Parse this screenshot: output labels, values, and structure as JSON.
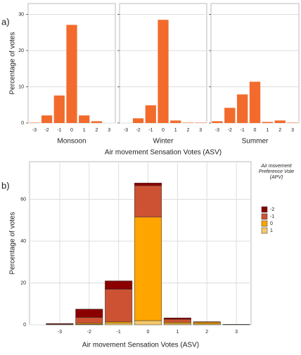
{
  "chart_data": [
    {
      "type": "bar",
      "panel_label": "a)",
      "y_label": "Percentage of votes",
      "x_label": "Air movement Sensation Votes (ASV)",
      "subtitle": "Monsoon",
      "categories": [
        "-3",
        "-2",
        "-1",
        "0",
        "1",
        "2",
        "3"
      ],
      "values": [
        0.1,
        2.1,
        7.6,
        27.1,
        2.1,
        0.5,
        0
      ],
      "color": "#f26b2c",
      "ylim": [
        0,
        33
      ],
      "yticks": [
        0,
        10,
        20,
        30
      ],
      "grid": true
    },
    {
      "type": "bar",
      "subtitle": "Winter",
      "categories": [
        "-3",
        "-2",
        "-1",
        "0",
        "1",
        "2",
        "3"
      ],
      "values": [
        0,
        1.3,
        4.9,
        28.5,
        0.7,
        0.1,
        0.1
      ],
      "color": "#f26b2c",
      "ylim": [
        0,
        33
      ],
      "grid": true
    },
    {
      "type": "bar",
      "subtitle": "Summer",
      "categories": [
        "-3",
        "-2",
        "-1",
        "0",
        "1",
        "2",
        "3"
      ],
      "values": [
        0.5,
        4.2,
        7.9,
        11.4,
        0.3,
        0.7,
        0.1
      ],
      "color": "#f26b2c",
      "ylim": [
        0,
        33
      ],
      "grid": true
    },
    {
      "type": "stacked_bar",
      "panel_label": "b)",
      "y_label": "Percentage of votes",
      "x_label": "Air movement Sensation Votes (ASV)",
      "legend_title": "Air movement Preference Vote (APV)",
      "categories": [
        "-3",
        "-2",
        "-1",
        "0",
        "1",
        "2",
        "3"
      ],
      "series": [
        {
          "name": "-2",
          "color": "#8b0000",
          "values": [
            0.3,
            4,
            4,
            1.3,
            0.7,
            0,
            0
          ]
        },
        {
          "name": "-1",
          "color": "#cd5234",
          "values": [
            0.3,
            2.8,
            15.5,
            15,
            1.4,
            0.3,
            0
          ]
        },
        {
          "name": "0",
          "color": "#ffa500",
          "values": [
            0,
            0.5,
            0.7,
            49.5,
            0.6,
            0.8,
            0.1
          ]
        },
        {
          "name": "1",
          "color": "#f5c86a",
          "values": [
            0,
            0.2,
            0.8,
            2,
            0.6,
            0.4,
            0.1
          ]
        }
      ],
      "ylim": [
        0,
        78
      ],
      "yticks": [
        0,
        20,
        40,
        60
      ],
      "grid": true
    }
  ]
}
